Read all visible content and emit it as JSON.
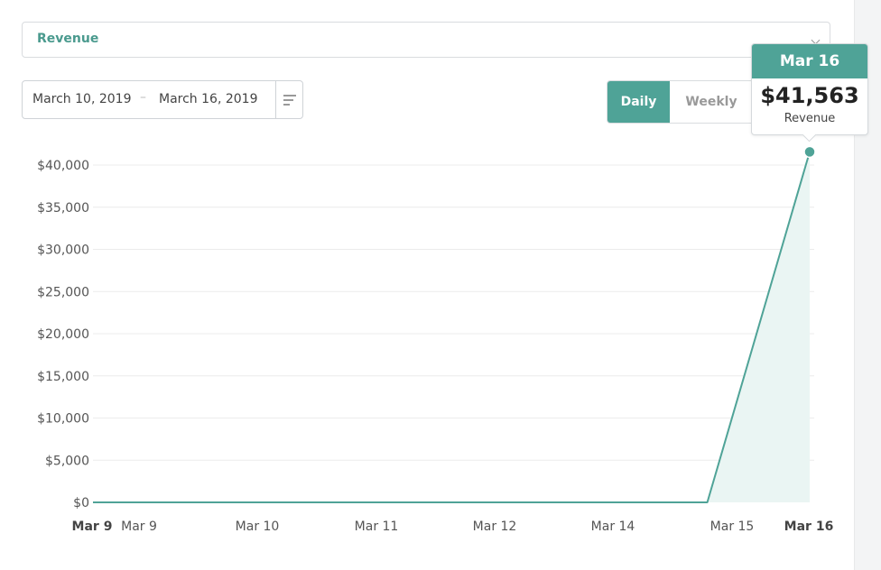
{
  "metric_select": {
    "label": "Revenue"
  },
  "date_range": {
    "start": "March 10, 2019",
    "separator": "–",
    "end": "March 16, 2019"
  },
  "granularity": {
    "options": [
      "Daily",
      "Weekly"
    ],
    "selected": "Daily"
  },
  "tooltip": {
    "date": "Mar 16",
    "value": "$41,563",
    "label": "Revenue"
  },
  "colors": {
    "accent": "#4fa397",
    "select_text": "#4a9a8e",
    "line": "#4fa397",
    "area": "#eaf5f3",
    "grid": "#ececec"
  },
  "chart_data": {
    "type": "area",
    "x_tick_labels": [
      {
        "label": "Mar 9",
        "bold": true
      },
      {
        "label": "Mar 9",
        "bold": false
      },
      {
        "label": "Mar 10",
        "bold": false
      },
      {
        "label": "Mar 11",
        "bold": false
      },
      {
        "label": "Mar 12",
        "bold": false
      },
      {
        "label": "Mar 14",
        "bold": false
      },
      {
        "label": "Mar 15",
        "bold": false
      },
      {
        "label": "Mar 16",
        "bold": true
      }
    ],
    "y_tick_labels": [
      "$0",
      "$5,000",
      "$10,000",
      "$15,000",
      "$20,000",
      "$25,000",
      "$30,000",
      "$35,000",
      "$40,000"
    ],
    "y_ticks": [
      0,
      5000,
      10000,
      15000,
      20000,
      25000,
      30000,
      35000,
      40000
    ],
    "ylim": [
      0,
      40000
    ],
    "x_domain": [
      9,
      16
    ],
    "series": [
      {
        "points": [
          {
            "x": 9,
            "y": 0
          },
          {
            "x": 15,
            "y": 0
          },
          {
            "x": 16,
            "y": 41563
          }
        ]
      }
    ],
    "highlight_point": {
      "x": 16,
      "y": 41563
    },
    "grid": true
  }
}
